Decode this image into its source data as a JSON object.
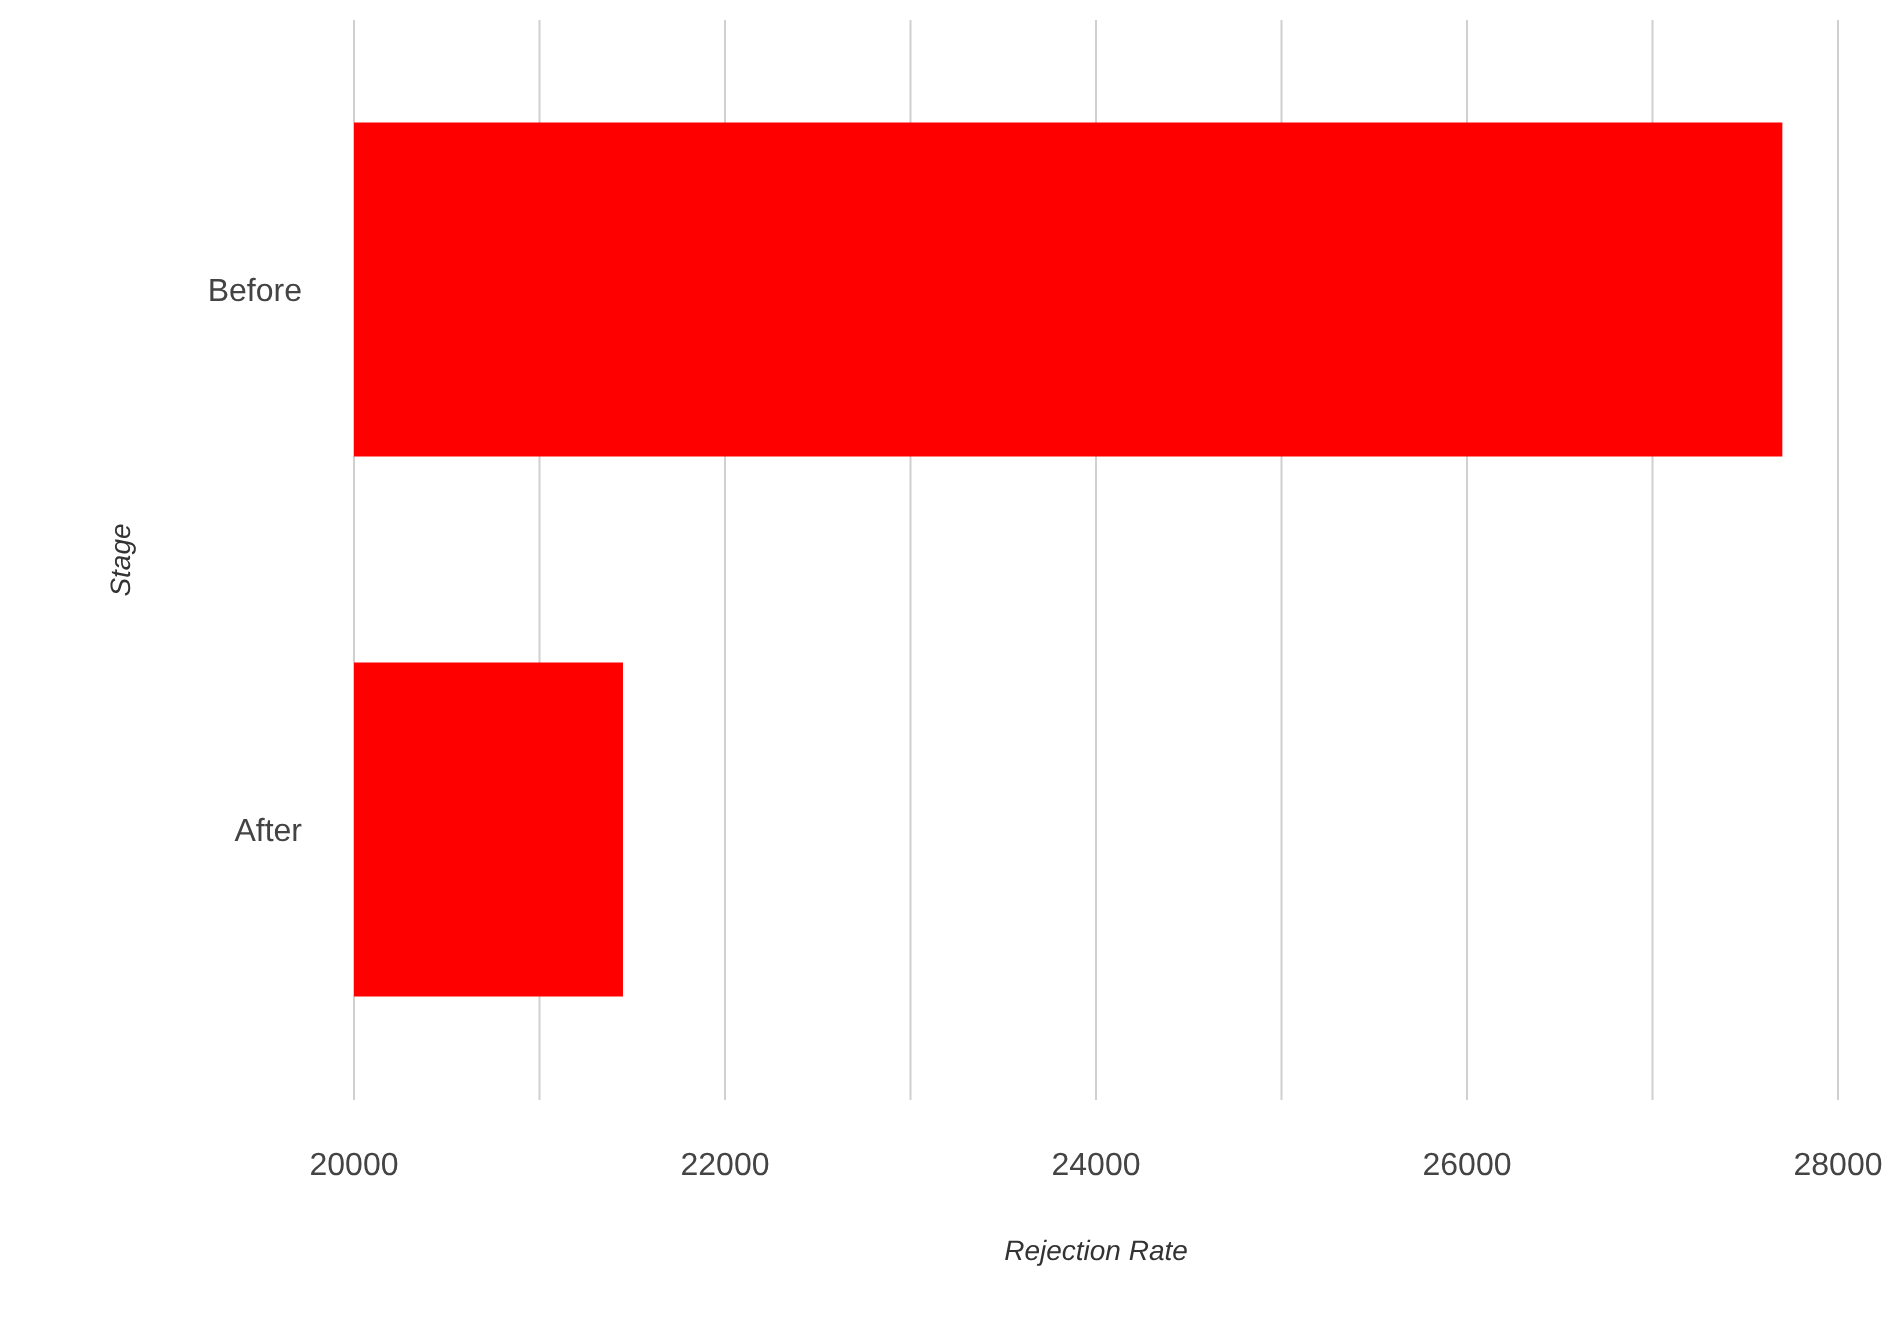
{
  "chart_data": {
    "type": "bar",
    "orientation": "horizontal",
    "xlabel": "Rejection Rate",
    "ylabel": "Stage",
    "categories": [
      "Before",
      "After"
    ],
    "values": [
      27700,
      21450
    ],
    "color": "#ff0000",
    "xlim": [
      20000,
      28000
    ],
    "xticks": [
      20000,
      {
        "value": 21000,
        "label": null
      },
      22000,
      {
        "value": 23000,
        "label": null
      },
      24000,
      {
        "value": 25000,
        "label": null
      },
      26000,
      {
        "value": 27000,
        "label": null
      },
      28000
    ],
    "grid": "x"
  }
}
